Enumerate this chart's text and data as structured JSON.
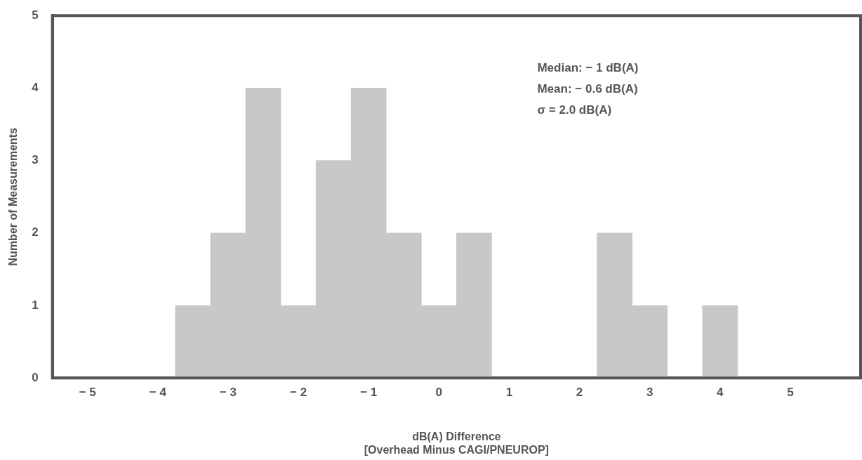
{
  "chart_data": {
    "type": "histogram",
    "bins": [
      -3.75,
      -3.25,
      -2.75,
      -2.25,
      -1.75,
      -1.25,
      -0.75,
      -0.25,
      0.25,
      0.75,
      1.25,
      1.75,
      2.25,
      2.75,
      3.25,
      3.75,
      4.25
    ],
    "values": [
      1,
      2,
      4,
      1,
      3,
      4,
      2,
      1,
      2,
      0,
      0,
      0,
      2,
      1,
      0,
      1
    ],
    "color": "#c8c8c8",
    "xlabel": "dB(A) Difference\n[Overhead Minus CAGI/PNEUROP]",
    "ylabel": "Number of Measurements",
    "xlim": [
      -5.5,
      6
    ],
    "xticks": [
      -5,
      -4,
      -3,
      -2,
      -1,
      0,
      1,
      2,
      3,
      4,
      5
    ],
    "ylim": [
      0,
      5
    ],
    "yticks": [
      0,
      1,
      2,
      3,
      4,
      5
    ],
    "annotations": [
      "Median: − 1 dB(A)",
      "Mean: − 0.6 dB(A)",
      "σ = 2.0 dB(A)"
    ],
    "grid": false,
    "legend": false
  }
}
